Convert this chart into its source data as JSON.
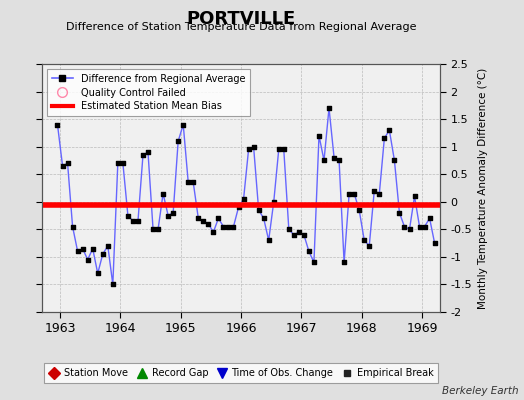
{
  "title": "PORTVILLE",
  "subtitle": "Difference of Station Temperature Data from Regional Average",
  "ylabel": "Monthly Temperature Anomaly Difference (°C)",
  "credit": "Berkeley Earth",
  "xlim": [
    1962.7,
    1969.3
  ],
  "ylim": [
    -2.0,
    2.5
  ],
  "yticks": [
    -2.0,
    -1.5,
    -1.0,
    -0.5,
    0.0,
    0.5,
    1.0,
    1.5,
    2.0,
    2.5
  ],
  "xticks": [
    1963,
    1964,
    1965,
    1966,
    1967,
    1968,
    1969
  ],
  "bias_level": -0.05,
  "line_color": "#6666ff",
  "marker_color": "#000000",
  "bias_color": "#ff0000",
  "fig_bg_color": "#e0e0e0",
  "plot_bg_color": "#f0f0f0",
  "data_x": [
    1962.958,
    1963.042,
    1963.125,
    1963.208,
    1963.292,
    1963.375,
    1963.458,
    1963.542,
    1963.625,
    1963.708,
    1963.792,
    1963.875,
    1963.958,
    1964.042,
    1964.125,
    1964.208,
    1964.292,
    1964.375,
    1964.458,
    1964.542,
    1964.625,
    1964.708,
    1964.792,
    1964.875,
    1964.958,
    1965.042,
    1965.125,
    1965.208,
    1965.292,
    1965.375,
    1965.458,
    1965.542,
    1965.625,
    1965.708,
    1965.792,
    1965.875,
    1965.958,
    1966.042,
    1966.125,
    1966.208,
    1966.292,
    1966.375,
    1966.458,
    1966.542,
    1966.625,
    1966.708,
    1966.792,
    1966.875,
    1966.958,
    1967.042,
    1967.125,
    1967.208,
    1967.292,
    1967.375,
    1967.458,
    1967.542,
    1967.625,
    1967.708,
    1967.792,
    1967.875,
    1967.958,
    1968.042,
    1968.125,
    1968.208,
    1968.292,
    1968.375,
    1968.458,
    1968.542,
    1968.625,
    1968.708,
    1968.792,
    1968.875,
    1968.958,
    1969.042,
    1969.125,
    1969.208
  ],
  "data_y": [
    1.4,
    0.65,
    0.7,
    -0.45,
    -0.9,
    -0.85,
    -1.05,
    -0.85,
    -1.3,
    -0.95,
    -0.8,
    -1.5,
    0.7,
    0.7,
    -0.25,
    -0.35,
    -0.35,
    0.85,
    0.9,
    -0.5,
    -0.5,
    0.15,
    -0.25,
    -0.2,
    1.1,
    1.4,
    0.35,
    0.35,
    -0.3,
    -0.35,
    -0.4,
    -0.55,
    -0.3,
    -0.45,
    -0.45,
    -0.45,
    -0.1,
    0.05,
    0.95,
    1.0,
    -0.15,
    -0.3,
    -0.7,
    0.0,
    0.95,
    0.95,
    -0.5,
    -0.6,
    -0.55,
    -0.6,
    -0.9,
    -1.1,
    1.2,
    0.75,
    1.7,
    0.8,
    0.75,
    -1.1,
    0.15,
    0.15,
    -0.15,
    -0.7,
    -0.8,
    0.2,
    0.15,
    1.15,
    1.3,
    0.75,
    -0.2,
    -0.45,
    -0.5,
    0.1,
    -0.45,
    -0.45,
    -0.3,
    -0.75
  ]
}
